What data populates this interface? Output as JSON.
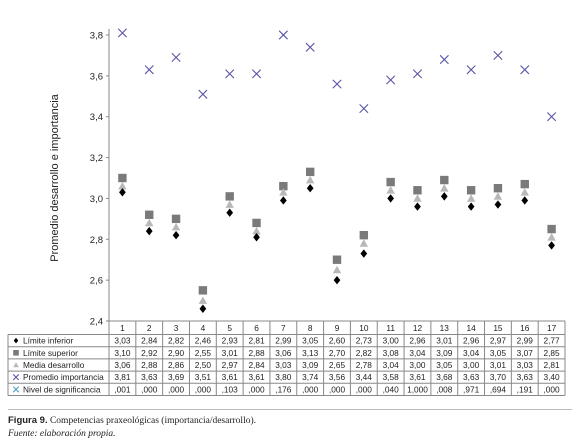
{
  "chart_data": {
    "type": "scatter",
    "title": "",
    "ylabel": "Promedio desarrollo e importancia",
    "xlabel": "",
    "ylim": [
      2.4,
      3.9
    ],
    "yticks": [
      "2,4",
      "2,6",
      "2,8",
      "3,0",
      "3,2",
      "3,4",
      "3,6",
      "3,8"
    ],
    "ytick_values": [
      2.4,
      2.6,
      2.8,
      3.0,
      3.2,
      3.4,
      3.6,
      3.8
    ],
    "categories": [
      "1",
      "2",
      "3",
      "4",
      "5",
      "6",
      "7",
      "8",
      "9",
      "10",
      "11",
      "12",
      "13",
      "14",
      "15",
      "16",
      "17"
    ],
    "grid": false,
    "legend_placement": "table-below",
    "series": [
      {
        "name": "Límite inferior",
        "marker": "diamond",
        "color": "#000000",
        "values": [
          3.03,
          2.84,
          2.82,
          2.46,
          2.93,
          2.81,
          2.99,
          3.05,
          2.6,
          2.73,
          3.0,
          2.96,
          3.01,
          2.96,
          2.97,
          2.99,
          2.77
        ],
        "labels": [
          "3,03",
          "2,84",
          "2,82",
          "2,46",
          "2,93",
          "2,81",
          "2,99",
          "3,05",
          "2,60",
          "2,73",
          "3,00",
          "2,96",
          "3,01",
          "2,96",
          "2,97",
          "2,99",
          "2,77"
        ]
      },
      {
        "name": "Límite superior",
        "marker": "square",
        "color": "#7a7a7a",
        "values": [
          3.1,
          2.92,
          2.9,
          2.55,
          3.01,
          2.88,
          3.06,
          3.13,
          2.7,
          2.82,
          3.08,
          3.04,
          3.09,
          3.04,
          3.05,
          3.07,
          2.85
        ],
        "labels": [
          "3,10",
          "2,92",
          "2,90",
          "2,55",
          "3,01",
          "2,88",
          "3,06",
          "3,13",
          "2,70",
          "2,82",
          "3,08",
          "3,04",
          "3,09",
          "3,04",
          "3,05",
          "3,07",
          "2,85"
        ]
      },
      {
        "name": "Media desarrollo",
        "marker": "triangle",
        "color": "#b8b8b8",
        "values": [
          3.06,
          2.88,
          2.86,
          2.5,
          2.97,
          2.84,
          3.03,
          3.09,
          2.65,
          2.78,
          3.04,
          3.0,
          3.05,
          3.0,
          3.01,
          3.03,
          2.81
        ],
        "labels": [
          "3,06",
          "2,88",
          "2,86",
          "2,50",
          "2,97",
          "2,84",
          "3,03",
          "3,09",
          "2,65",
          "2,78",
          "3,04",
          "3,00",
          "3,05",
          "3,00",
          "3,01",
          "3,03",
          "2,81"
        ]
      },
      {
        "name": "Promedio importancia",
        "marker": "x",
        "color": "#5a55a8",
        "values": [
          3.81,
          3.63,
          3.69,
          3.51,
          3.61,
          3.61,
          3.8,
          3.74,
          3.56,
          3.44,
          3.58,
          3.61,
          3.68,
          3.63,
          3.7,
          3.63,
          3.4
        ],
        "labels": [
          "3,81",
          "3,63",
          "3,69",
          "3,51",
          "3,61",
          "3,61",
          "3,80",
          "3,74",
          "3,56",
          "3,44",
          "3,58",
          "3,61",
          "3,68",
          "3,63",
          "3,70",
          "3,63",
          "3,40"
        ]
      },
      {
        "name": "Nivel de significancia",
        "marker": "x",
        "color": "#4fa3c7",
        "plotted": false,
        "values": [
          0.001,
          0.0,
          0.0,
          0.0,
          0.103,
          0.0,
          0.176,
          0.0,
          0.0,
          0.0,
          0.04,
          1.0,
          0.008,
          0.971,
          0.694,
          0.191,
          0.0
        ],
        "labels": [
          ",001",
          ",000",
          ",000",
          ",000",
          ",103",
          ",000",
          ",176",
          ",000",
          ",000",
          ",000",
          ",040",
          "1,000",
          ",008",
          ",971",
          ",694",
          ",191",
          ",000"
        ]
      }
    ]
  },
  "caption": {
    "figure_label": "Figura 9.",
    "figure_text": "Competencias praxeológicas (importancia/desarrollo).",
    "source": "Fuente: elaboración propia."
  }
}
